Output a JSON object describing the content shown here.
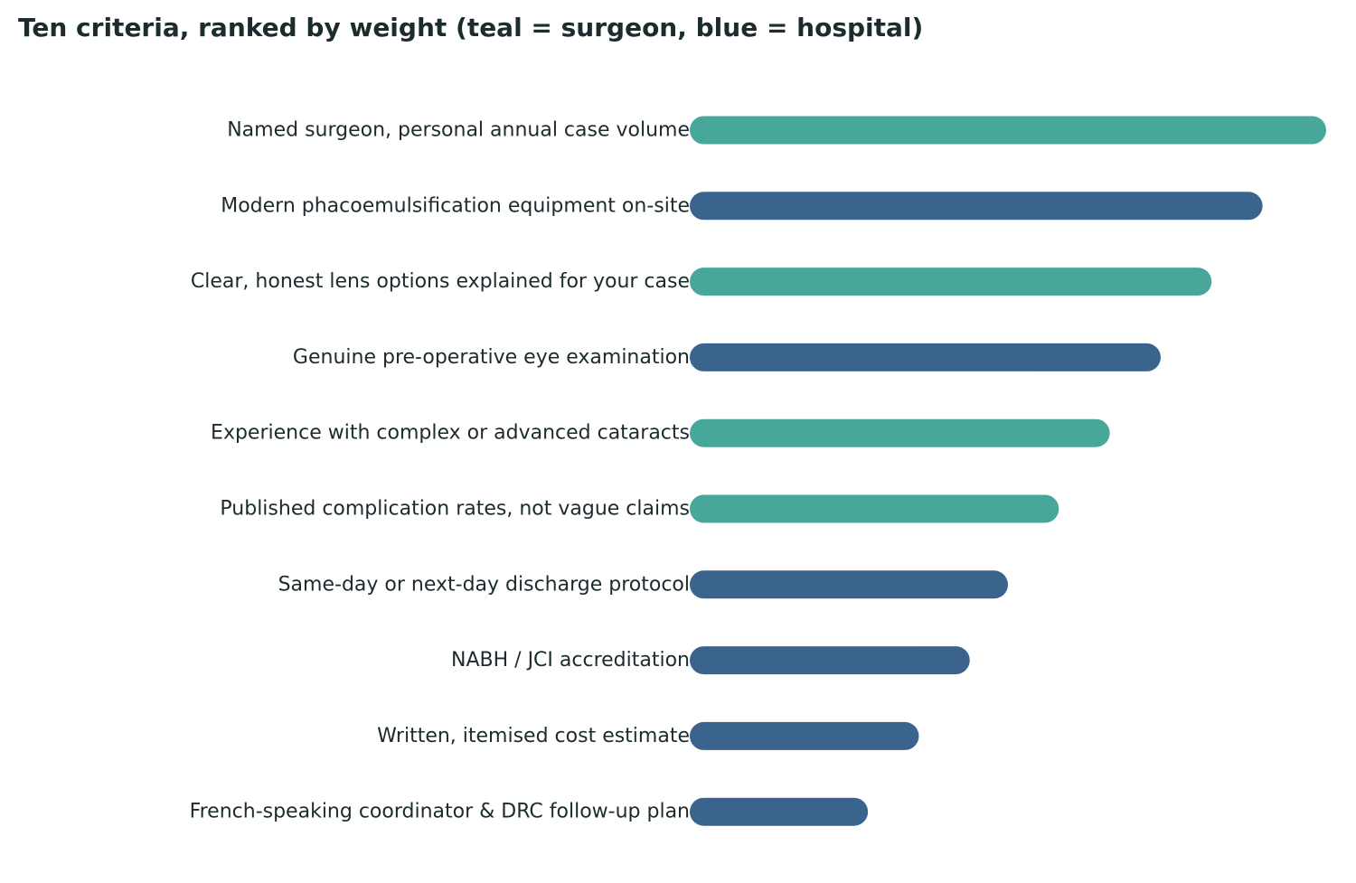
{
  "chart_data": {
    "type": "bar",
    "orientation": "horizontal",
    "title": "Ten criteria, ranked by weight (teal = surgeon, blue = hospital)",
    "xlabel": "",
    "ylabel": "",
    "xlim": [
      0,
      100
    ],
    "grid": false,
    "legend": "none",
    "categories": [
      "Named surgeon, personal annual case volume",
      "Modern phacoemulsification equipment on-site",
      "Clear, honest lens options explained for your case",
      "Genuine pre-operative eye examination",
      "Experience with complex or advanced cataracts",
      "Published complication rates, not vague claims",
      "Same-day or next-day discharge protocol",
      "NABH / JCI accreditation",
      "Written, itemised cost estimate",
      "French-speaking coordinator & DRC follow-up plan"
    ],
    "values": [
      100,
      90,
      82,
      74,
      66,
      58,
      50,
      44,
      36,
      28
    ],
    "groups": [
      "surgeon",
      "hospital",
      "surgeon",
      "hospital",
      "surgeon",
      "surgeon",
      "hospital",
      "hospital",
      "hospital",
      "hospital"
    ],
    "colors": {
      "surgeon": "#48a79b",
      "hospital": "#3a648e"
    }
  }
}
